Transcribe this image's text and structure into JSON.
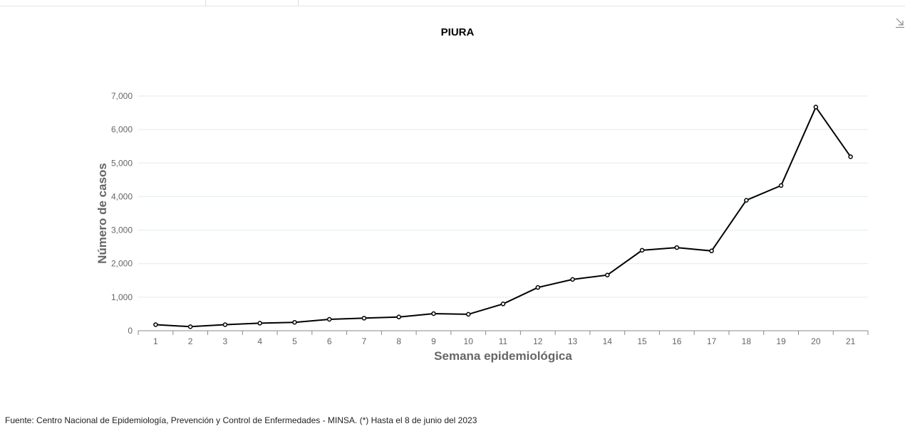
{
  "chart_data": {
    "type": "line",
    "title": "PIURA",
    "xlabel": "Semana epidemiológica",
    "ylabel": "Número de casos",
    "categories": [
      "1",
      "2",
      "3",
      "4",
      "5",
      "6",
      "7",
      "8",
      "9",
      "10",
      "11",
      "12",
      "13",
      "14",
      "15",
      "16",
      "17",
      "18",
      "19",
      "20",
      "21"
    ],
    "series": [
      {
        "values": [
          180,
          120,
          180,
          225,
          250,
          340,
          375,
          410,
          510,
          490,
          800,
          1290,
          1530,
          1660,
          2400,
          2480,
          2380,
          3890,
          4330,
          6670,
          5190
        ]
      }
    ],
    "yticks": [
      "0",
      "1,000",
      "2,000",
      "3,000",
      "4,000",
      "5,000",
      "6,000",
      "7,000"
    ],
    "ylim": [
      0,
      7000
    ],
    "grid": true,
    "line_color": "#000000"
  },
  "footer": {
    "source": "Fuente: Centro Nacional de Epidemiología, Prevención y Control de Enfermedades - MINSA. (*) Hasta el 8 de junio del 2023"
  },
  "icons": {
    "download": "download-icon"
  }
}
